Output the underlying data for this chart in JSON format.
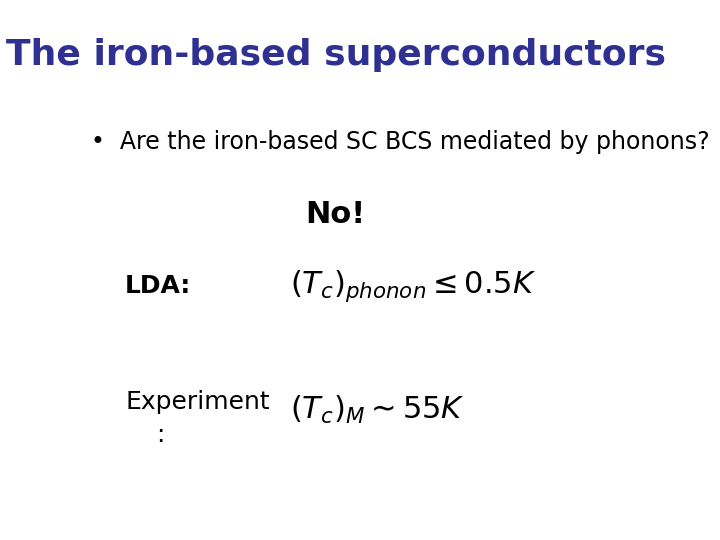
{
  "title": "The iron-based superconductors",
  "title_color": "#2E3191",
  "title_fontsize": 26,
  "bullet_text": "Are the iron-based SC BCS mediated by phonons?",
  "bullet_fontsize": 17,
  "no_text": "No!",
  "no_fontsize": 22,
  "lda_label": "LDA:",
  "lda_label_fontsize": 18,
  "lda_formula_fontsize": 22,
  "exp_label_line1": "Experiment",
  "exp_label_line2": ":",
  "exp_label_fontsize": 18,
  "exp_formula_fontsize": 22,
  "background_color": "#ffffff",
  "text_color": "#000000"
}
